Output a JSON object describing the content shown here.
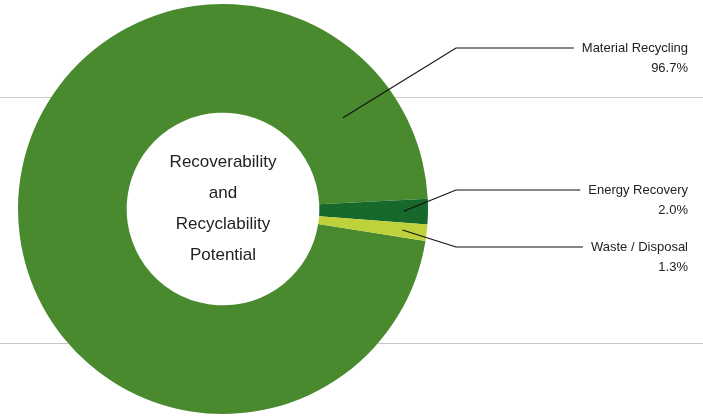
{
  "chart_data": {
    "type": "doughnut",
    "title": "Recoverability and Recyclability Potential",
    "categories": [
      "Material Recycling",
      "Energy Recovery",
      "Waste / Disposal"
    ],
    "values": [
      96.7,
      2.0,
      1.3
    ],
    "value_labels": [
      "96.7%",
      "2.0%",
      "1.3%"
    ],
    "colors": [
      "#4a8a2e",
      "#17692b",
      "#bfd23c"
    ],
    "data_labels": true
  }
}
